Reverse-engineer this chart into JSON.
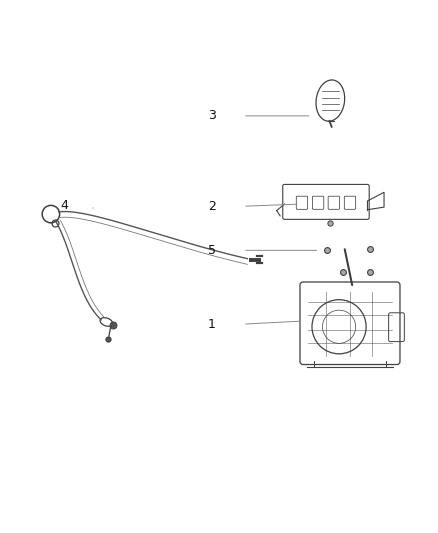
{
  "background_color": "#ffffff",
  "fig_width": 4.38,
  "fig_height": 5.33,
  "dpi": 100,
  "line_color": "#808080",
  "part_color": "#404040",
  "label_fontsize": 9
}
